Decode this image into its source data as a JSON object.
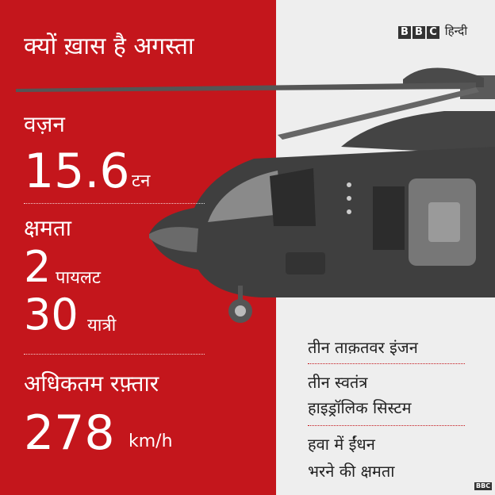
{
  "header": {
    "title": "क्यों ख़ास है अगस्ता",
    "brand_language": "हिन्दी"
  },
  "stats": [
    {
      "label": "वज़न",
      "items": [
        {
          "value": "15.6",
          "unit": "टन"
        }
      ]
    },
    {
      "label": "क्षमता",
      "items": [
        {
          "value": "2",
          "unit": "पायलट"
        },
        {
          "value": "30",
          "unit": "यात्री"
        }
      ]
    },
    {
      "label": "अधिकतम रफ़्तार",
      "items": [
        {
          "value": "278",
          "unit": "km/h"
        }
      ]
    }
  ],
  "features": [
    [
      "तीन ताक़तवर इंजन"
    ],
    [
      "तीन स्वतंत्र",
      "हाइड्रॉलिक सिस्टम"
    ],
    [
      "हवा में ईंधन",
      "भरने की क्षमता"
    ]
  ],
  "footer": {
    "credit": "BBC"
  }
}
